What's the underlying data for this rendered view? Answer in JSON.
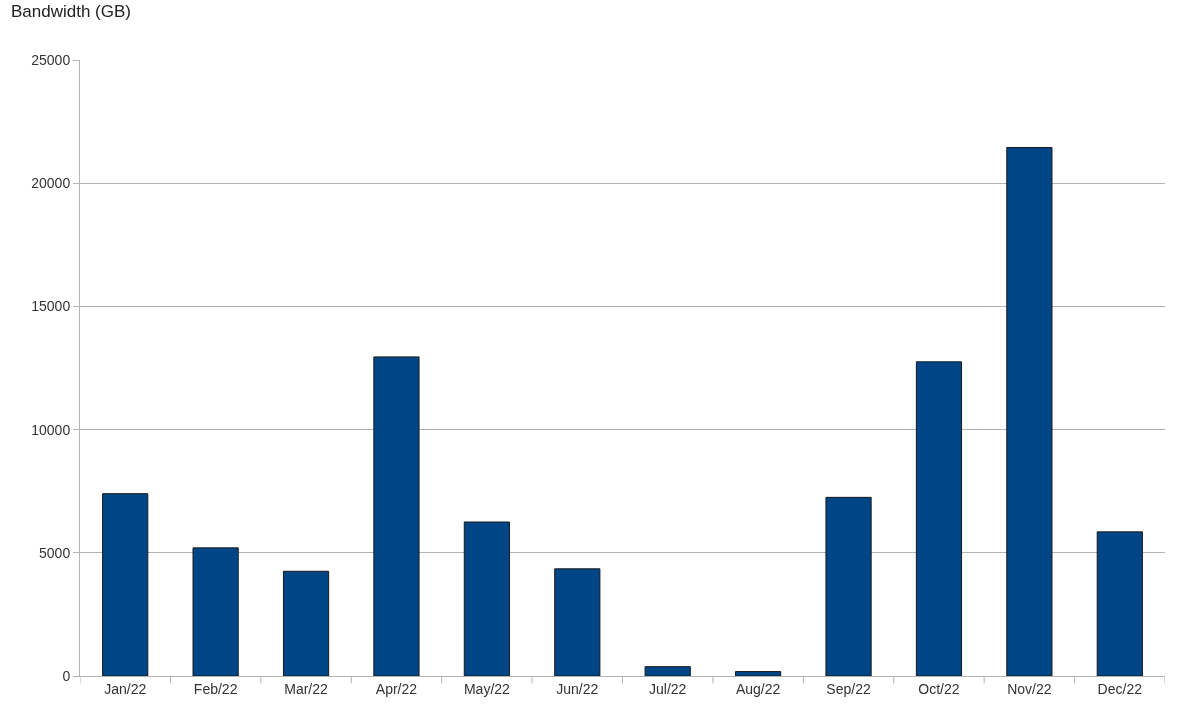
{
  "chart_data": {
    "type": "bar",
    "ylabel": "Bandwidth (GB)",
    "categories": [
      "Jan/22",
      "Feb/22",
      "Mar/22",
      "Apr/22",
      "May/22",
      "Jun/22",
      "Jul/22",
      "Aug/22",
      "Sep/22",
      "Oct/22",
      "Nov/22",
      "Dec/22"
    ],
    "values": [
      7400,
      5200,
      4250,
      12950,
      6250,
      4350,
      380,
      180,
      7250,
      12750,
      21450,
      5850
    ],
    "color": "#004586",
    "ylim": [
      0,
      25000
    ],
    "yticks": [
      0,
      5000,
      10000,
      15000,
      20000,
      25000
    ],
    "grid": "y"
  }
}
